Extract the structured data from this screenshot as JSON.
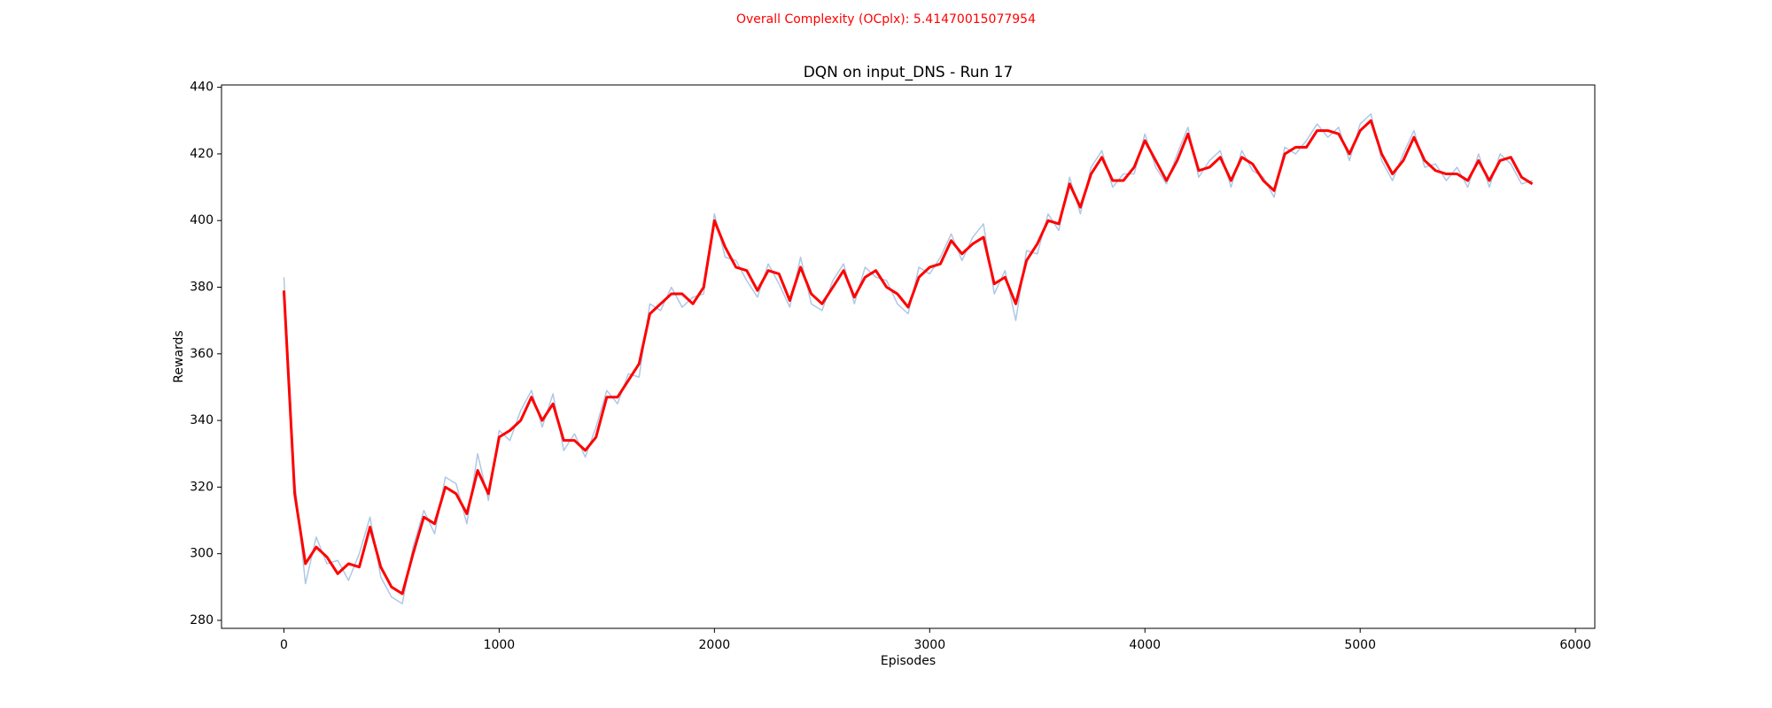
{
  "chart_data": {
    "type": "line",
    "suptitle": "Overall Complexity (OCplx): 5.41470015077954",
    "title": "DQN on input_DNS - Run 17",
    "x_label": "Episodes",
    "y_label": "Rewards",
    "xlim": [
      -290,
      6090
    ],
    "ylim": [
      277.6,
      440.7
    ],
    "xticks": [
      0,
      1000,
      2000,
      3000,
      4000,
      5000,
      6000
    ],
    "yticks": [
      280,
      300,
      320,
      340,
      360,
      380,
      400,
      420,
      440
    ],
    "grid": false,
    "x": [
      0,
      50,
      100,
      150,
      200,
      250,
      300,
      350,
      400,
      450,
      500,
      550,
      600,
      650,
      700,
      750,
      800,
      850,
      900,
      950,
      1000,
      1050,
      1100,
      1150,
      1200,
      1250,
      1300,
      1350,
      1400,
      1450,
      1500,
      1550,
      1600,
      1650,
      1700,
      1750,
      1800,
      1850,
      1900,
      1950,
      2000,
      2050,
      2100,
      2150,
      2200,
      2250,
      2300,
      2350,
      2400,
      2450,
      2500,
      2550,
      2600,
      2650,
      2700,
      2750,
      2800,
      2850,
      2900,
      2950,
      3000,
      3050,
      3100,
      3150,
      3200,
      3250,
      3300,
      3350,
      3400,
      3450,
      3500,
      3550,
      3600,
      3650,
      3700,
      3750,
      3800,
      3850,
      3900,
      3950,
      4000,
      4050,
      4100,
      4150,
      4200,
      4250,
      4300,
      4350,
      4400,
      4450,
      4500,
      4550,
      4600,
      4650,
      4700,
      4750,
      4800,
      4850,
      4900,
      4950,
      5000,
      5050,
      5100,
      5150,
      5200,
      5250,
      5300,
      5350,
      5400,
      5450,
      5500,
      5550,
      5600,
      5650,
      5700,
      5750,
      5800
    ],
    "series": [
      {
        "color": "#aec8e4",
        "width": 1.5,
        "values": [
          383,
          322,
          291,
          305,
          297,
          298,
          292,
          300,
          311,
          293,
          287,
          285,
          302,
          313,
          306,
          323,
          321,
          309,
          330,
          316,
          337,
          334,
          343,
          349,
          338,
          348,
          331,
          336,
          329,
          338,
          349,
          345,
          354,
          353,
          375,
          373,
          380,
          374,
          377,
          378,
          402,
          389,
          388,
          382,
          377,
          387,
          381,
          374,
          389,
          375,
          373,
          382,
          387,
          375,
          386,
          383,
          382,
          375,
          372,
          386,
          384,
          389,
          396,
          388,
          395,
          399,
          378,
          385,
          370,
          391,
          390,
          402,
          397,
          413,
          402,
          416,
          421,
          410,
          414,
          414,
          426,
          416,
          411,
          420,
          428,
          413,
          418,
          421,
          410,
          421,
          415,
          413,
          407,
          422,
          420,
          424,
          429,
          425,
          428,
          418,
          429,
          432,
          418,
          412,
          420,
          427,
          416,
          417,
          412,
          416,
          410,
          420,
          410,
          420,
          417,
          411,
          412
        ]
      },
      {
        "color": "#ff0000",
        "width": 3,
        "values": [
          379,
          318,
          297,
          302,
          299,
          294,
          297,
          296,
          308,
          296,
          290,
          288,
          300,
          311,
          309,
          320,
          318,
          312,
          325,
          318,
          335,
          337,
          340,
          347,
          340,
          345,
          334,
          334,
          331,
          335,
          347,
          347,
          352,
          357,
          372,
          375,
          378,
          378,
          375,
          380,
          400,
          392,
          386,
          385,
          379,
          385,
          384,
          376,
          386,
          378,
          375,
          380,
          385,
          377,
          383,
          385,
          380,
          378,
          374,
          383,
          386,
          387,
          394,
          390,
          393,
          395,
          381,
          383,
          375,
          388,
          393,
          400,
          399,
          411,
          404,
          414,
          419,
          412,
          412,
          416,
          424,
          418,
          412,
          418,
          426,
          415,
          416,
          419,
          412,
          419,
          417,
          412,
          409,
          420,
          422,
          422,
          427,
          427,
          426,
          420,
          427,
          430,
          420,
          414,
          418,
          425,
          418,
          415,
          414,
          414,
          412,
          418,
          412,
          418,
          419,
          413,
          411
        ]
      }
    ]
  }
}
